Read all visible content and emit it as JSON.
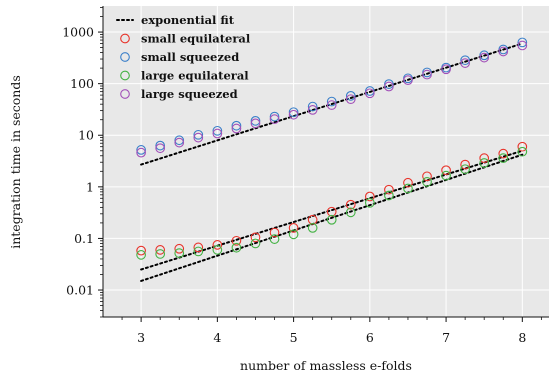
{
  "chart_data": {
    "type": "scatter",
    "title": "",
    "xlabel": "number of massless e-folds",
    "ylabel": "integration time in seconds",
    "xlim": [
      2.5,
      8.35
    ],
    "ylim": [
      0.003,
      3200
    ],
    "yscale": "log",
    "xticks": [
      3,
      4,
      5,
      6,
      7,
      8
    ],
    "yticks": [
      0.01,
      0.1,
      1,
      10,
      100,
      1000
    ],
    "ytick_labels": [
      "0.01",
      "0.1",
      "1",
      "10",
      "100",
      "1000"
    ],
    "grid": true,
    "legend_position": "top-left",
    "background_color": "#e8e8e8",
    "x": [
      3,
      3.25,
      3.5,
      3.75,
      4,
      4.25,
      4.5,
      4.75,
      5,
      5.25,
      5.5,
      5.75,
      6,
      6.25,
      6.5,
      6.75,
      7,
      7.25,
      7.5,
      7.75,
      8
    ],
    "series": [
      {
        "name": "small equilateral",
        "color": "#e8332a",
        "marker": "open-circle",
        "values": [
          0.058,
          0.06,
          0.063,
          0.067,
          0.075,
          0.09,
          0.105,
          0.13,
          0.16,
          0.23,
          0.33,
          0.45,
          0.65,
          0.88,
          1.2,
          1.6,
          2.1,
          2.7,
          3.6,
          4.4,
          6.0
        ]
      },
      {
        "name": "small squeezed",
        "color": "#3a7fc9",
        "marker": "open-circle",
        "values": [
          5.2,
          6.3,
          8.0,
          10.2,
          12.2,
          15.3,
          19.0,
          23.0,
          28.0,
          36.0,
          45.0,
          58.0,
          72.0,
          98.0,
          127.0,
          165.0,
          205.0,
          285.0,
          355.0,
          460.0,
          630.0
        ]
      },
      {
        "name": "large equilateral",
        "color": "#43b243",
        "marker": "open-circle",
        "values": [
          0.048,
          0.05,
          0.052,
          0.056,
          0.06,
          0.066,
          0.08,
          0.097,
          0.12,
          0.16,
          0.23,
          0.32,
          0.49,
          0.68,
          0.93,
          1.25,
          1.65,
          2.2,
          2.9,
          3.6,
          4.8
        ]
      },
      {
        "name": "large squeezed",
        "color": "#a250b8",
        "marker": "open-circle",
        "values": [
          4.6,
          5.6,
          7.2,
          9.0,
          10.8,
          13.5,
          17.0,
          20.5,
          25.0,
          31.0,
          38.5,
          50.0,
          65.0,
          88.0,
          117.0,
          150.0,
          190.0,
          250.0,
          320.0,
          420.0,
          550.0
        ]
      }
    ],
    "fits": [
      {
        "name": "exponential fit",
        "color": "#000000",
        "style": "dotted",
        "x": [
          3,
          8
        ],
        "values": [
          2.7,
          600
        ]
      },
      {
        "color": "#000000",
        "style": "dotted",
        "x": [
          3,
          8
        ],
        "values": [
          0.025,
          5.0
        ]
      },
      {
        "color": "#000000",
        "style": "dotted",
        "x": [
          3,
          8
        ],
        "values": [
          0.015,
          4.2
        ]
      }
    ]
  }
}
